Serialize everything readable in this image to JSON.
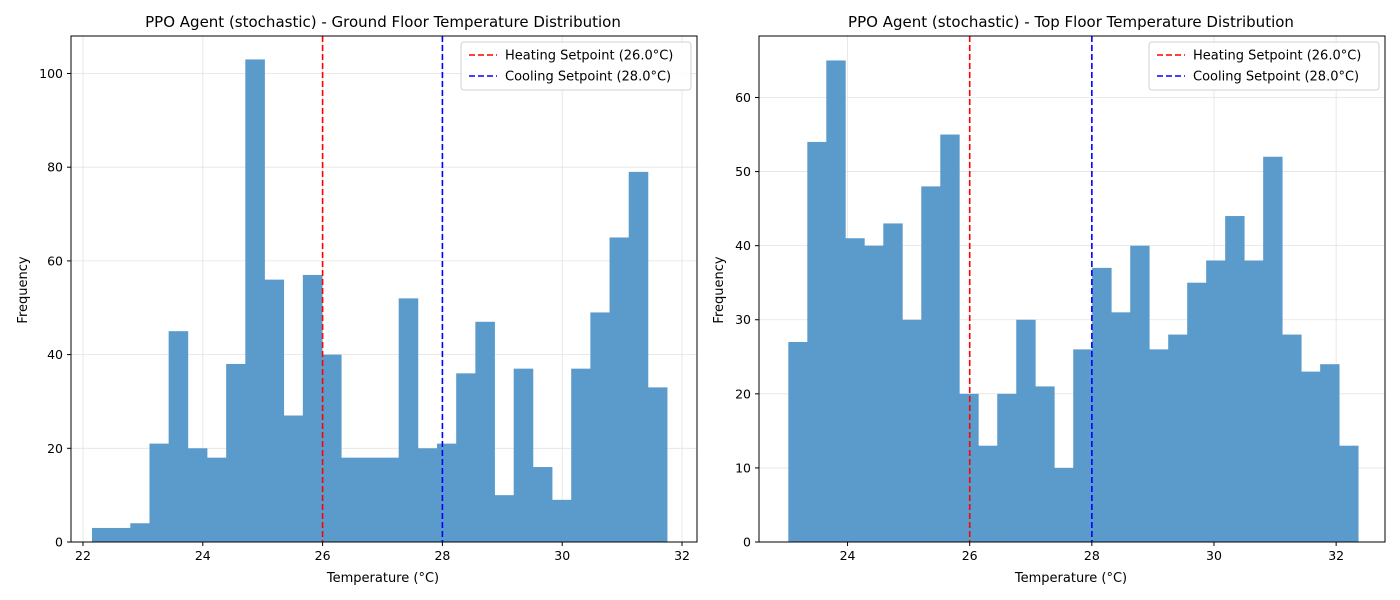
{
  "chart_data": [
    {
      "type": "bar",
      "title": "PPO Agent (stochastic) - Ground Floor Temperature Distribution",
      "xlabel": "Temperature (°C)",
      "ylabel": "Frequency",
      "xlim": [
        21.8,
        32.25
      ],
      "ylim": [
        0,
        108
      ],
      "xticks": [
        22,
        24,
        26,
        28,
        30,
        32
      ],
      "xtick_labels": [
        "22",
        "24",
        "26",
        "28",
        "30",
        "32"
      ],
      "yticks": [
        0,
        20,
        40,
        60,
        80,
        100
      ],
      "ytick_labels": [
        "0",
        "20",
        "40",
        "60",
        "80",
        "100"
      ],
      "bins": {
        "start": 22.15,
        "width": 0.32
      },
      "values": [
        3,
        3,
        4,
        21,
        45,
        20,
        18,
        38,
        103,
        56,
        27,
        57,
        40,
        18,
        18,
        18,
        52,
        20,
        21,
        36,
        47,
        10,
        37,
        16,
        9,
        37,
        49,
        65,
        79,
        33
      ],
      "bar_color": "#5b9bcb",
      "grid": true,
      "legend_position": "top-right",
      "vlines": [
        {
          "x": 26,
          "label": "Heating Setpoint (26.0°C)",
          "color": "#ff0000",
          "style": "dashed"
        },
        {
          "x": 28,
          "label": "Cooling Setpoint (28.0°C)",
          "color": "#0000ff",
          "style": "dashed"
        }
      ]
    },
    {
      "type": "bar",
      "title": "PPO Agent (stochastic) - Top Floor Temperature Distribution",
      "xlabel": "Temperature (°C)",
      "ylabel": "Frequency",
      "xlim": [
        22.55,
        32.8
      ],
      "ylim": [
        0,
        68.3
      ],
      "xticks": [
        24,
        26,
        28,
        30,
        32
      ],
      "xtick_labels": [
        "24",
        "26",
        "28",
        "30",
        "32"
      ],
      "yticks": [
        0,
        10,
        20,
        30,
        40,
        50,
        60
      ],
      "ytick_labels": [
        "0",
        "10",
        "20",
        "30",
        "40",
        "50",
        "60"
      ],
      "bins": {
        "start": 23.03,
        "width": 0.311
      },
      "values": [
        27,
        54,
        65,
        41,
        40,
        43,
        30,
        48,
        55,
        20,
        13,
        20,
        30,
        21,
        10,
        26,
        37,
        31,
        40,
        26,
        28,
        35,
        38,
        44,
        38,
        52,
        28,
        23,
        24,
        13
      ],
      "bar_color": "#5b9bcb",
      "grid": true,
      "legend_position": "top-right",
      "vlines": [
        {
          "x": 26,
          "label": "Heating Setpoint (26.0°C)",
          "color": "#ff0000",
          "style": "dashed"
        },
        {
          "x": 28,
          "label": "Cooling Setpoint (28.0°C)",
          "color": "#0000ff",
          "style": "dashed"
        }
      ]
    }
  ]
}
